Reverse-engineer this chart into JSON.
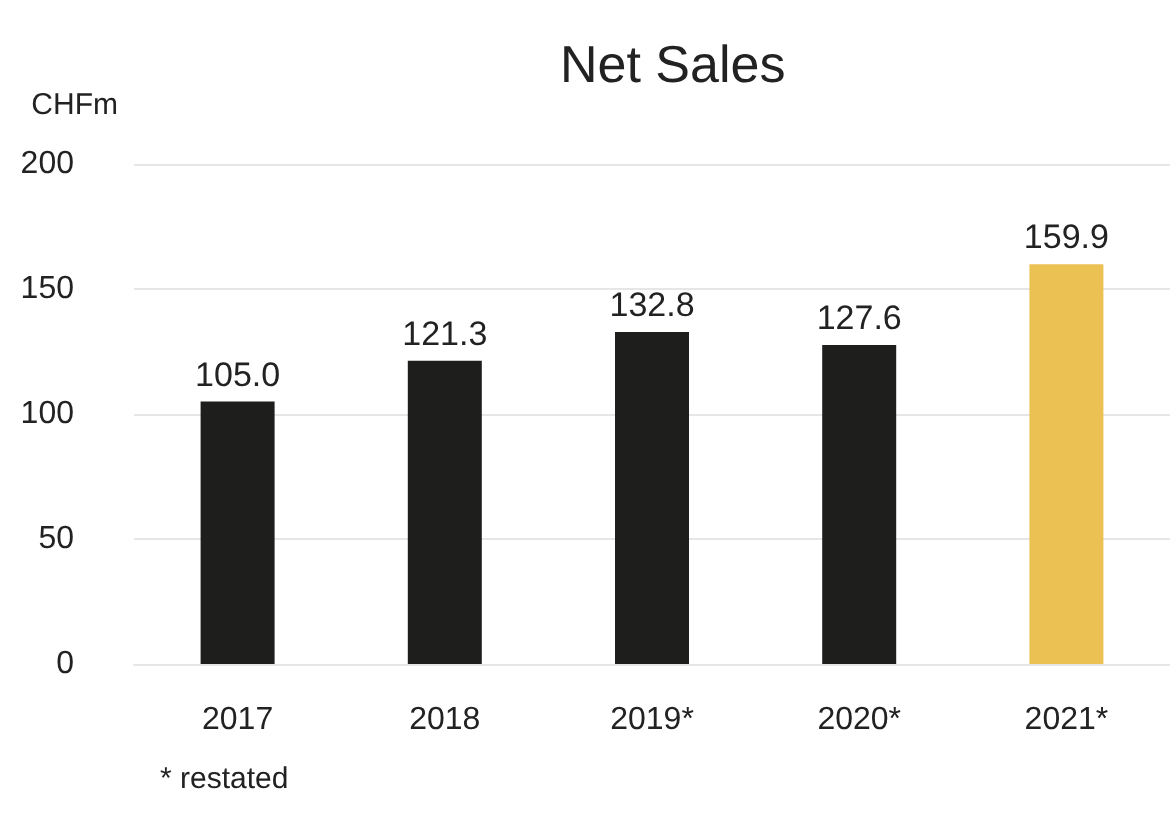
{
  "chart_data": {
    "type": "bar",
    "title": "Net Sales",
    "ylabel": "CHFm",
    "categories": [
      "2017",
      "2018",
      "2019*",
      "2020*",
      "2021*"
    ],
    "values": [
      105.0,
      121.3,
      132.8,
      127.6,
      159.9
    ],
    "colors": [
      "#1e1e1c",
      "#1e1e1c",
      "#1e1e1c",
      "#1e1e1c",
      "#ecc154"
    ],
    "ylim": [
      0,
      200
    ],
    "yticks": [
      0,
      50,
      100,
      150,
      200
    ],
    "grid": "y",
    "value_labels": [
      "105.0",
      "121.3",
      "132.8",
      "127.6",
      "159.9"
    ],
    "annotations": [
      "* restated"
    ]
  }
}
